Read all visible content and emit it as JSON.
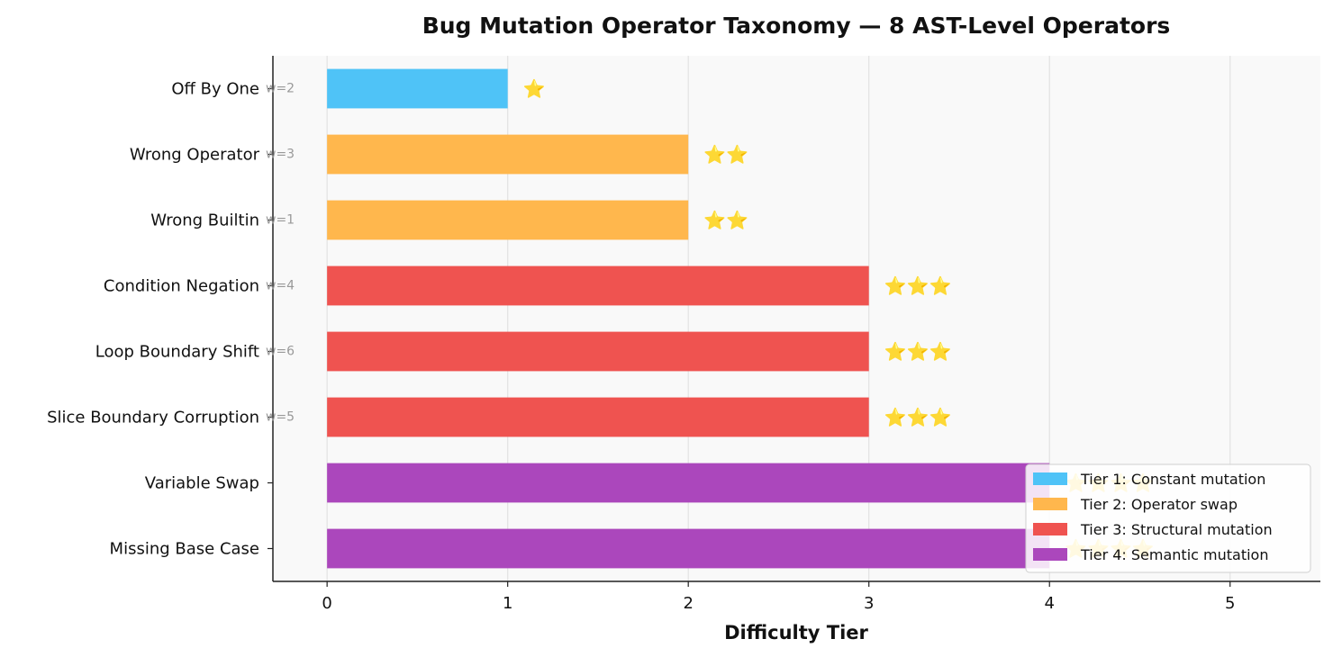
{
  "chart_data": {
    "type": "bar",
    "orientation": "horizontal",
    "title": "Bug Mutation Operator Taxonomy — 8 AST-Level Operators",
    "xlabel": "Difficulty Tier",
    "ylabel": "",
    "xlim": [
      -0.3,
      5.5
    ],
    "xticks": [
      0,
      1,
      2,
      3,
      4,
      5
    ],
    "grid": "x",
    "legend_position": "lower-right",
    "categories": [
      "Off By One",
      "Wrong Operator",
      "Wrong Builtin",
      "Condition Negation",
      "Loop Boundary Shift",
      "Slice Boundary Corruption",
      "Variable Swap",
      "Missing Base Case"
    ],
    "values": [
      1,
      2,
      2,
      3,
      3,
      3,
      4,
      4
    ],
    "weights": [
      "w=2",
      "w=3",
      "w=1",
      "w=4",
      "w=6",
      "w=5",
      "",
      ""
    ],
    "value_labels": [
      "⭐",
      "⭐⭐",
      "⭐⭐",
      "⭐⭐⭐",
      "⭐⭐⭐",
      "⭐⭐⭐",
      "⭐⭐⭐⭐",
      "⭐⭐⭐⭐"
    ],
    "tiers": [
      1,
      2,
      2,
      3,
      3,
      3,
      4,
      4
    ],
    "legend": [
      {
        "label": "Tier 1: Constant mutation",
        "color": "#4FC3F7"
      },
      {
        "label": "Tier 2: Operator swap",
        "color": "#FFB74D"
      },
      {
        "label": "Tier 3: Structural mutation",
        "color": "#EF5350"
      },
      {
        "label": "Tier 4: Semantic mutation",
        "color": "#AB47BC"
      }
    ]
  }
}
